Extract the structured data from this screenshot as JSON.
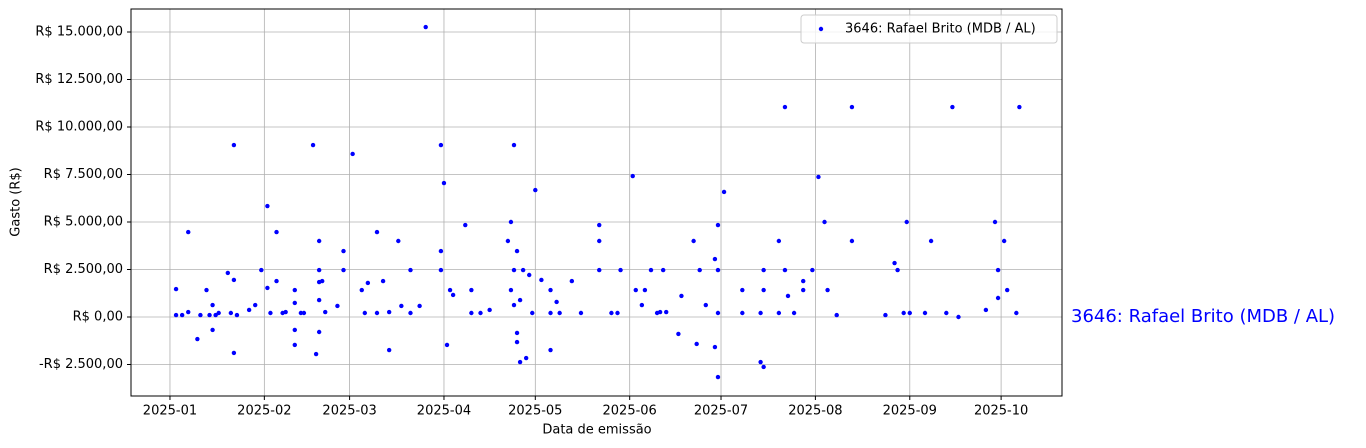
{
  "chart_data": {
    "type": "scatter",
    "xlabel": "Data de emissão",
    "ylabel": "Gasto (R$)",
    "annotations": [
      "3646: Rafael Brito (MDB / AL)"
    ],
    "legend": "upper right",
    "grid": true,
    "xlim": [
      -12.8,
      293
    ],
    "ylim": [
      -4158,
      16210
    ],
    "xticks": [
      {
        "value": 0,
        "label": "2025-01"
      },
      {
        "value": 31,
        "label": "2025-02"
      },
      {
        "value": 59,
        "label": "2025-03"
      },
      {
        "value": 90,
        "label": "2025-04"
      },
      {
        "value": 120,
        "label": "2025-05"
      },
      {
        "value": 151,
        "label": "2025-06"
      },
      {
        "value": 181,
        "label": "2025-07"
      },
      {
        "value": 212,
        "label": "2025-08"
      },
      {
        "value": 243,
        "label": "2025-09"
      },
      {
        "value": 273,
        "label": "2025-10"
      }
    ],
    "yticks": [
      {
        "value": -2500,
        "label": "-R$ 2.500,00"
      },
      {
        "value": 0,
        "label": "R$ 0,00"
      },
      {
        "value": 2500,
        "label": "R$ 2.500,00"
      },
      {
        "value": 5000,
        "label": "R$ 5.000,00"
      },
      {
        "value": 7500,
        "label": "R$ 7.500,00"
      },
      {
        "value": 10000,
        "label": "R$ 10.000,00"
      },
      {
        "value": 12500,
        "label": "R$ 12.500,00"
      },
      {
        "value": 15000,
        "label": "R$ 15.000,00"
      }
    ],
    "x": [
      2,
      2,
      4,
      6,
      6,
      9,
      10,
      12,
      13,
      14,
      14,
      15,
      16,
      19,
      20,
      21,
      21,
      21,
      22,
      26,
      28,
      30,
      32,
      32,
      33,
      35,
      35,
      37,
      38,
      41,
      41,
      41,
      41,
      43,
      44,
      47,
      48,
      49,
      49,
      49,
      49,
      49,
      50,
      51,
      55,
      57,
      57,
      60,
      63,
      64,
      65,
      68,
      68,
      70,
      72,
      72,
      75,
      76,
      79,
      79,
      82,
      84,
      89,
      89,
      89,
      90,
      91,
      92,
      93,
      97,
      99,
      99,
      102,
      105,
      111,
      112,
      112,
      113,
      113,
      113,
      114,
      114,
      114,
      115,
      115,
      116,
      117,
      118,
      119,
      120,
      122,
      125,
      125,
      125,
      127,
      128,
      132,
      135,
      141,
      141,
      141,
      145,
      147,
      148,
      152,
      153,
      155,
      156,
      158,
      160,
      161,
      162,
      163,
      167,
      168,
      172,
      173,
      174,
      176,
      179,
      179,
      180,
      180,
      180,
      180,
      182,
      188,
      188,
      194,
      194,
      195,
      195,
      195,
      200,
      200,
      202,
      202,
      203,
      205,
      208,
      208,
      211,
      213,
      215,
      216,
      219,
      224,
      224,
      235,
      238,
      239,
      241,
      242,
      243,
      248,
      250,
      255,
      257,
      259,
      268,
      271,
      272,
      272,
      274,
      275,
      278,
      279
    ],
    "series": [
      {
        "name": "3646: Rafael Brito (MDB / AL)",
        "color": "#0000ff",
        "values": [
          1470,
          100,
          100,
          4470,
          260,
          -1160,
          100,
          1420,
          100,
          -680,
          630,
          100,
          210,
          2320,
          210,
          9050,
          -1890,
          1950,
          100,
          370,
          630,
          2470,
          5840,
          1530,
          210,
          4470,
          1890,
          210,
          260,
          1420,
          740,
          -680,
          -1470,
          210,
          210,
          9050,
          -1950,
          4000,
          2470,
          1840,
          -790,
          890,
          1890,
          260,
          580,
          2470,
          3470,
          8580,
          1420,
          210,
          1790,
          4470,
          210,
          1890,
          260,
          -1740,
          4000,
          580,
          2470,
          210,
          580,
          15260,
          9050,
          2470,
          3470,
          7050,
          -1470,
          1420,
          1160,
          4840,
          1420,
          210,
          210,
          370,
          4000,
          5000,
          1420,
          2470,
          630,
          9050,
          3470,
          -840,
          -1320,
          -2370,
          890,
          2470,
          -2160,
          2210,
          210,
          6680,
          1950,
          210,
          -1740,
          1420,
          790,
          210,
          1890,
          210,
          4000,
          4840,
          2470,
          210,
          210,
          2470,
          7420,
          1420,
          630,
          1420,
          2470,
          210,
          260,
          2470,
          260,
          -890,
          1110,
          4000,
          -1420,
          2470,
          630,
          3050,
          -1580,
          4840,
          2470,
          210,
          -3160,
          6580,
          1420,
          210,
          210,
          -2370,
          -2630,
          2470,
          1420,
          4000,
          210,
          2470,
          11050,
          1110,
          210,
          1420,
          1890,
          2470,
          7370,
          5000,
          1420,
          100,
          11050,
          4000,
          100,
          2840,
          2470,
          210,
          5000,
          210,
          210,
          4000,
          210,
          11050,
          0,
          370,
          5000,
          2470,
          1000,
          4000,
          1420,
          210,
          11050
        ]
      }
    ]
  }
}
